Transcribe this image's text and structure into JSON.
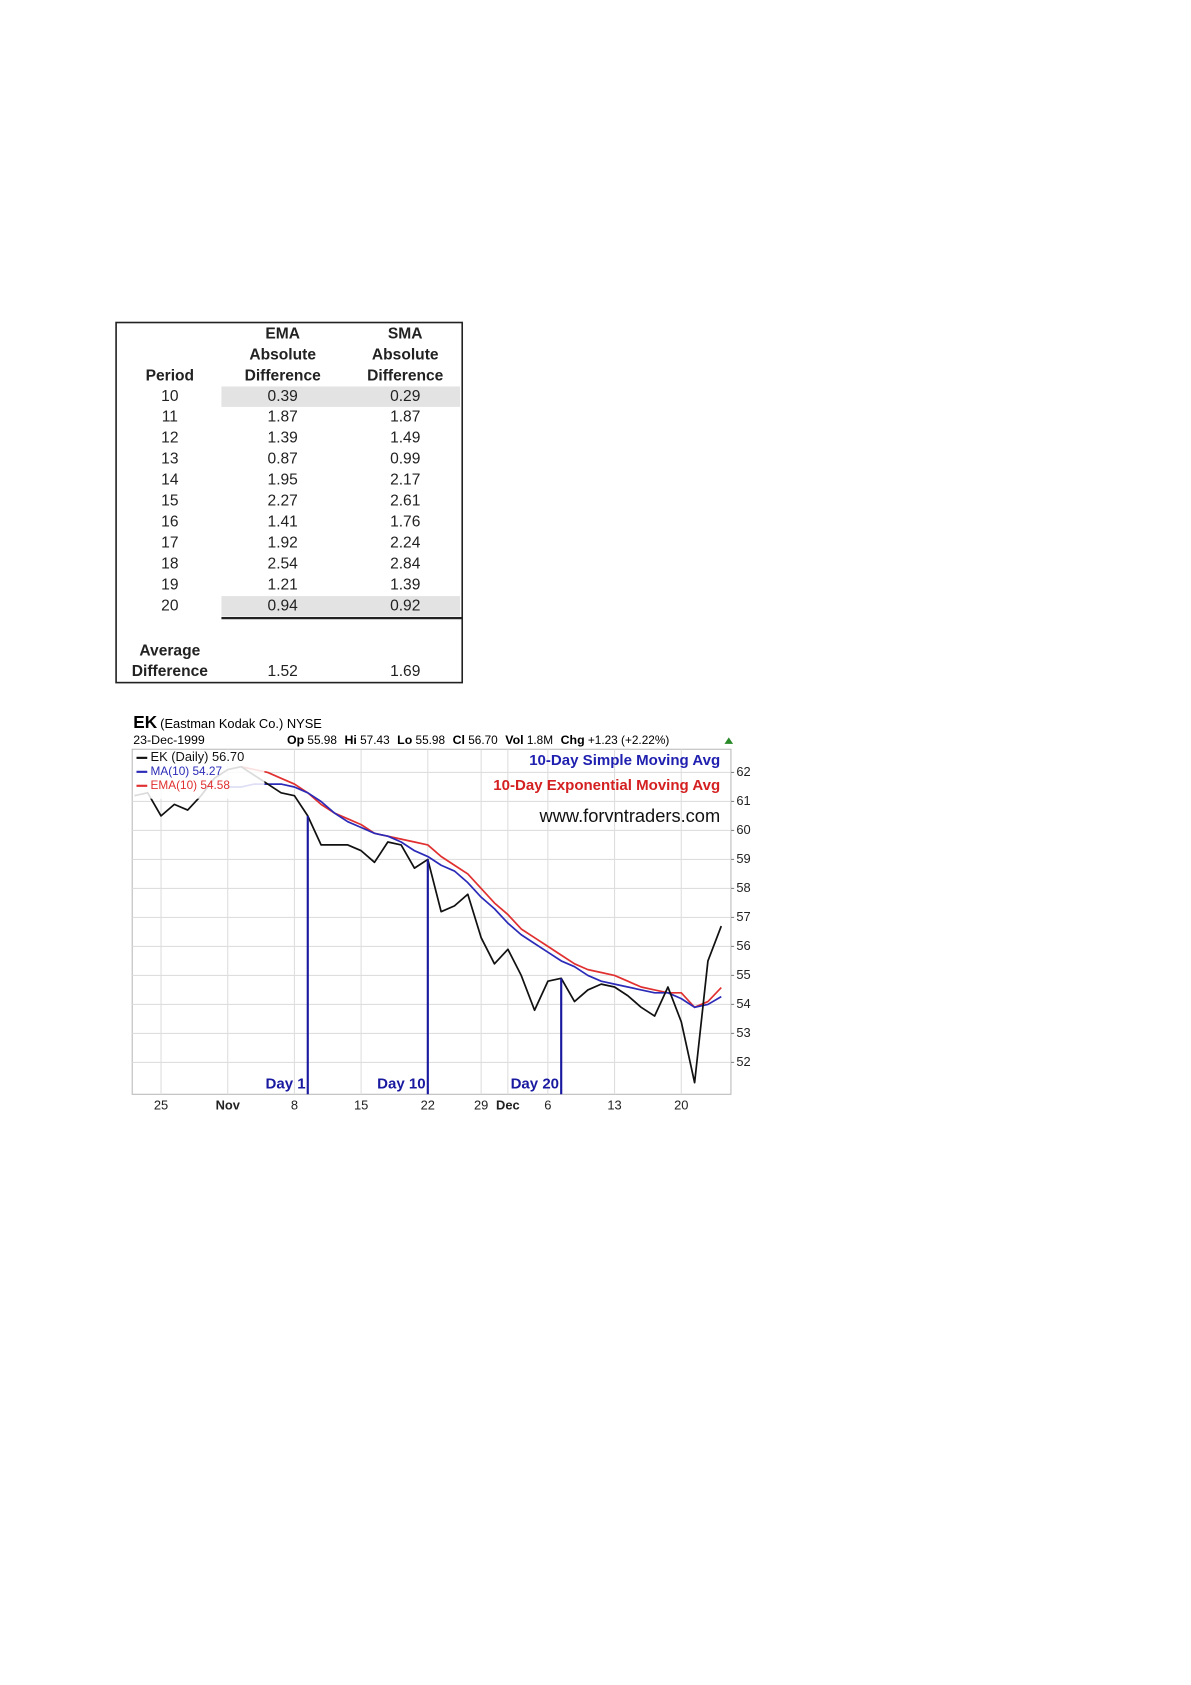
{
  "table": {
    "header": [
      [
        "Period"
      ],
      [
        "EMA",
        "Absolute",
        "Difference"
      ],
      [
        "SMA",
        "Absolute",
        "Difference"
      ]
    ],
    "rows": [
      [
        10,
        0.39,
        0.29
      ],
      [
        11,
        1.87,
        1.87
      ],
      [
        12,
        1.39,
        1.49
      ],
      [
        13,
        0.87,
        0.99
      ],
      [
        14,
        1.95,
        2.17
      ],
      [
        15,
        2.27,
        2.61
      ],
      [
        16,
        1.41,
        1.76
      ],
      [
        17,
        1.92,
        2.24
      ],
      [
        18,
        2.54,
        2.84
      ],
      [
        19,
        1.21,
        1.39
      ],
      [
        20,
        0.94,
        0.92
      ]
    ],
    "footer": {
      "label": [
        "Average",
        "Difference"
      ],
      "values": [
        1.52,
        1.69
      ]
    }
  },
  "chart_data": {
    "type": "line",
    "title": "EK",
    "subtitle": "(Eastman Kodak Co.) NYSE",
    "date": "23-Dec-1999",
    "quote": [
      [
        "Op",
        "55.98"
      ],
      [
        "Hi",
        "57.43"
      ],
      [
        "Lo",
        "55.98"
      ],
      [
        "Cl",
        "56.70"
      ],
      [
        "Vol",
        "1.8M"
      ],
      [
        "Chg",
        "+1.23 (+2.22%)"
      ]
    ],
    "categories": [
      null,
      null,
      "25",
      null,
      null,
      null,
      null,
      "Nov",
      null,
      null,
      null,
      null,
      "8",
      null,
      null,
      null,
      null,
      "15",
      null,
      null,
      null,
      null,
      "22",
      null,
      null,
      null,
      "29",
      null,
      "Dec",
      null,
      null,
      "6",
      null,
      null,
      null,
      null,
      "13",
      null,
      null,
      null,
      null,
      "20",
      null,
      null,
      null
    ],
    "series": [
      {
        "name": "EK (Daily) 56.70",
        "color": "#111111",
        "values": [
          61.2,
          61.3,
          60.5,
          60.9,
          60.7,
          61.2,
          61.8,
          62.1,
          62.2,
          61.9,
          61.6,
          61.3,
          61.2,
          60.5,
          59.5,
          59.5,
          59.5,
          59.3,
          58.9,
          59.6,
          59.5,
          58.7,
          59.0,
          57.2,
          57.4,
          57.8,
          56.3,
          55.4,
          55.9,
          55.0,
          53.8,
          54.8,
          54.9,
          54.1,
          54.5,
          54.7,
          54.6,
          54.3,
          53.9,
          53.6,
          54.6,
          53.4,
          51.3,
          55.5,
          56.7
        ]
      },
      {
        "name": "MA(10) 54.27",
        "color": "#2b2bb8",
        "values": [
          null,
          null,
          null,
          null,
          null,
          null,
          null,
          61.5,
          61.5,
          61.6,
          61.6,
          61.6,
          61.5,
          61.3,
          61.0,
          60.6,
          60.3,
          60.1,
          59.9,
          59.8,
          59.6,
          59.3,
          59.1,
          58.8,
          58.6,
          58.2,
          57.7,
          57.3,
          56.8,
          56.4,
          56.1,
          55.8,
          55.5,
          55.3,
          55.0,
          54.8,
          54.7,
          54.6,
          54.5,
          54.4,
          54.4,
          54.2,
          53.9,
          54.0,
          54.27
        ]
      },
      {
        "name": "EMA(10) 54.58",
        "color": "#e03030",
        "values": [
          null,
          null,
          null,
          null,
          null,
          null,
          null,
          null,
          62.2,
          62.1,
          62.0,
          61.8,
          61.6,
          61.3,
          60.9,
          60.6,
          60.4,
          60.2,
          59.9,
          59.8,
          59.7,
          59.6,
          59.5,
          59.1,
          58.8,
          58.5,
          58.0,
          57.5,
          57.1,
          56.6,
          56.3,
          56.0,
          55.7,
          55.4,
          55.2,
          55.1,
          55.0,
          54.8,
          54.6,
          54.5,
          54.4,
          54.4,
          53.9,
          54.1,
          54.58
        ]
      }
    ],
    "ylim": [
      50.9,
      62.8
    ],
    "yticks": [
      52,
      53,
      54,
      55,
      56,
      57,
      58,
      59,
      60,
      61,
      62
    ],
    "grid": true,
    "notes": [
      {
        "text": "10-Day Simple Moving Avg",
        "color": "#2020b0"
      },
      {
        "text": "10-Day Exponential Moving Avg",
        "color": "#d42020"
      },
      {
        "text": "www.forvntraders.com",
        "color": "#111111"
      }
    ],
    "annotations": [
      {
        "text": "Day 1",
        "at": 13
      },
      {
        "text": "Day 10",
        "at": 22
      },
      {
        "text": "Day 20",
        "at": 32
      }
    ],
    "annotation_color": "#1a1aa0"
  }
}
